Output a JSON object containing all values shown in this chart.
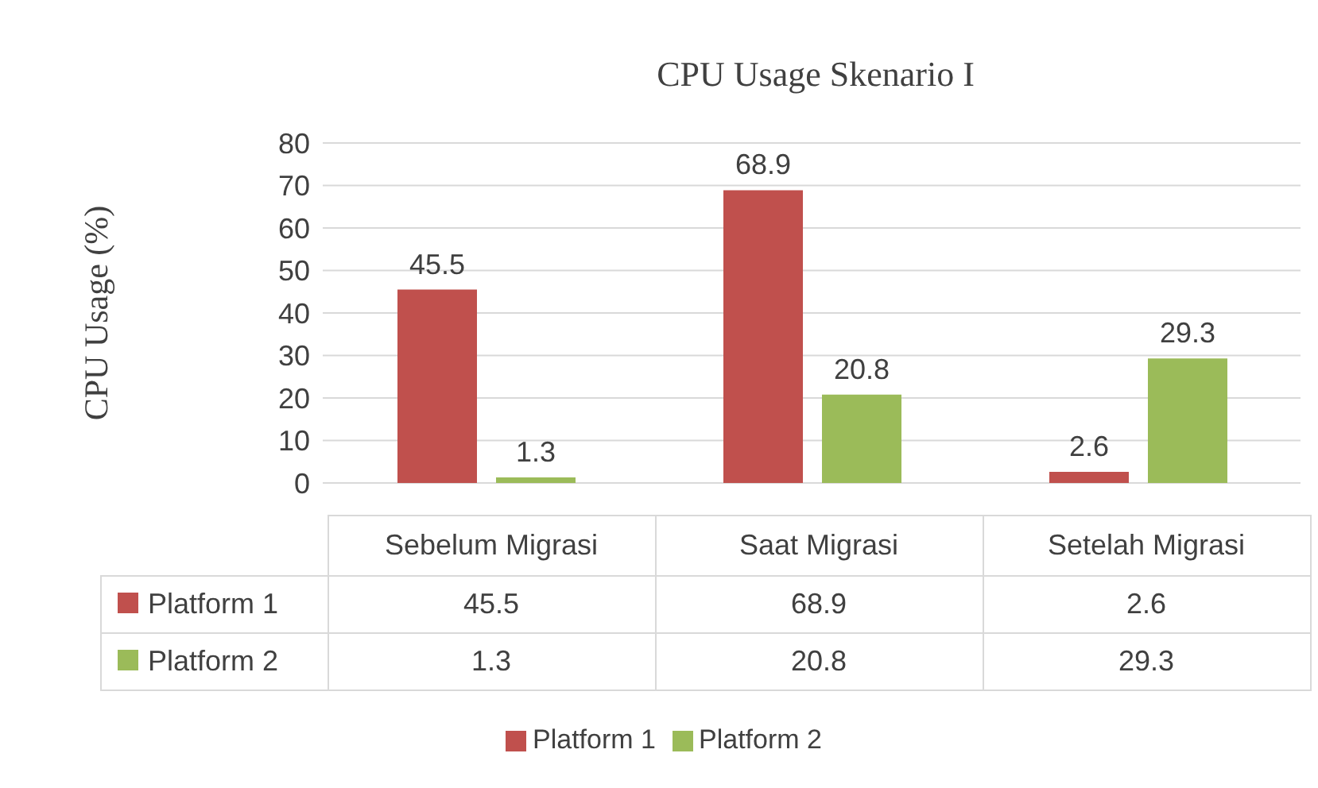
{
  "chart_data": {
    "type": "bar",
    "title": "CPU Usage Skenario I",
    "ylabel": "CPU Usage (%)",
    "categories": [
      "Sebelum Migrasi",
      "Saat Migrasi",
      "Setelah Migrasi"
    ],
    "series": [
      {
        "name": "Platform 1",
        "color": "#c0504d",
        "values": [
          45.5,
          68.9,
          2.6
        ],
        "value_labels": [
          "45.5",
          "68.9",
          "2.6"
        ]
      },
      {
        "name": "Platform 2",
        "color": "#9bbb59",
        "values": [
          1.3,
          20.8,
          29.3
        ],
        "value_labels": [
          "1.3",
          "20.8",
          "29.3"
        ]
      }
    ],
    "ylim": [
      0,
      80
    ],
    "yticks": [
      0,
      10,
      20,
      30,
      40,
      50,
      60,
      70,
      80
    ],
    "grid": "y",
    "legend": "bottom",
    "data_labels": true
  }
}
